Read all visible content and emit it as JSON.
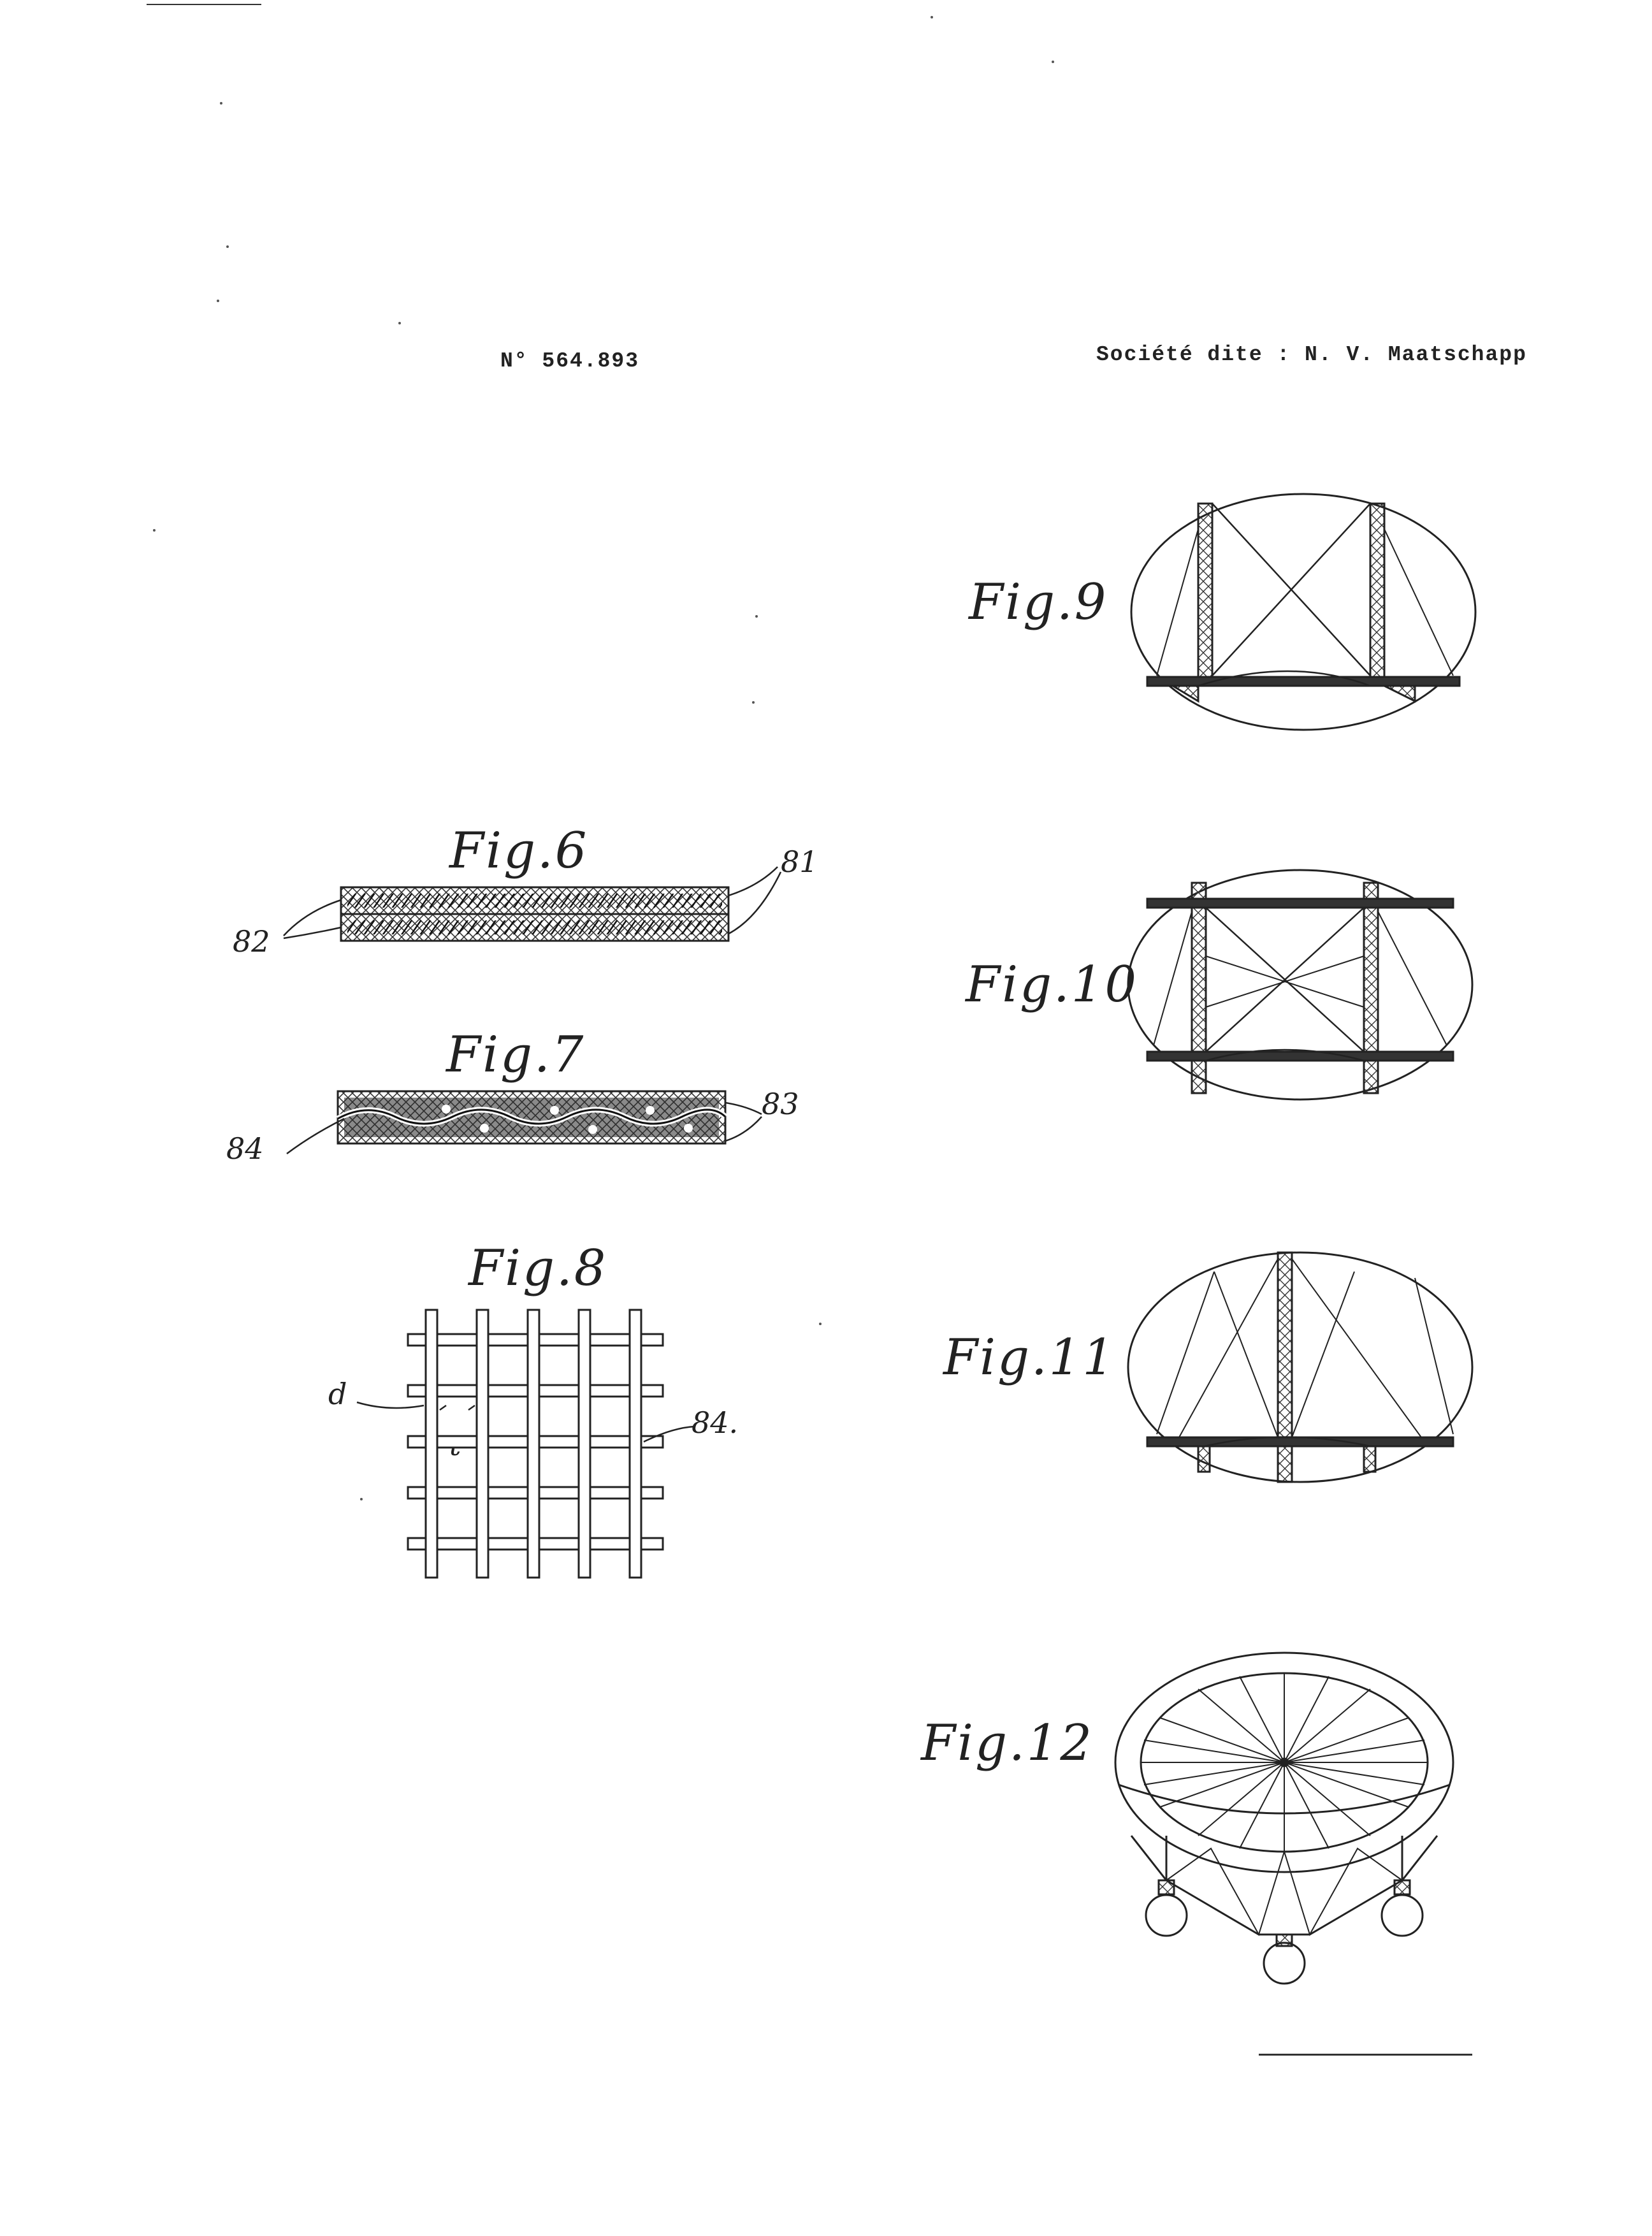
{
  "header": {
    "patent_number": "N° 564.893",
    "applicant": "Société dite : N. V. Maatschapp"
  },
  "figures": {
    "fig6": {
      "label": "Fig.6",
      "refs": [
        "81",
        "82"
      ]
    },
    "fig7": {
      "label": "Fig.7",
      "refs": [
        "83",
        "84"
      ]
    },
    "fig8": {
      "label": "Fig.8",
      "refs": [
        "d",
        "t",
        "84."
      ]
    },
    "fig9": {
      "label": "Fig.9"
    },
    "fig10": {
      "label": "Fig.10"
    },
    "fig11": {
      "label": "Fig.11"
    },
    "fig12": {
      "label": "Fig.12"
    }
  }
}
